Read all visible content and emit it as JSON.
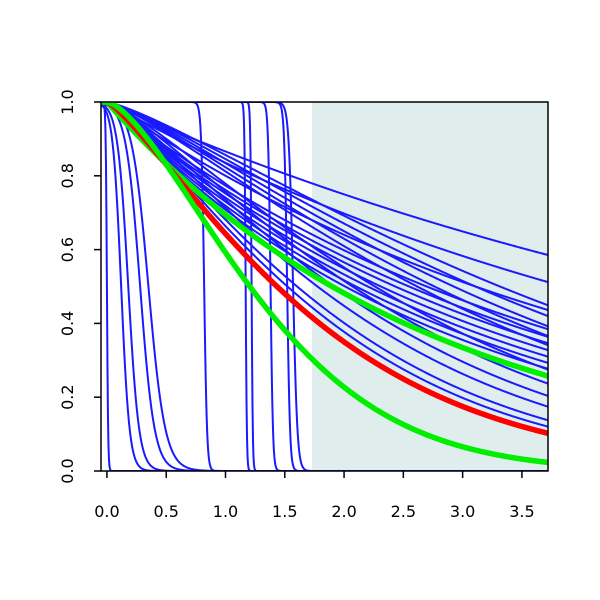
{
  "chart_data": {
    "type": "line",
    "title": "",
    "xlabel": "",
    "ylabel": "",
    "xlim": [
      -0.05,
      3.72
    ],
    "ylim": [
      0,
      1
    ],
    "x_ticks": [
      "0.0",
      "0.5",
      "1.0",
      "1.5",
      "2.0",
      "2.5",
      "3.0",
      "3.5"
    ],
    "y_ticks": [
      "0.0",
      "0.2",
      "0.4",
      "0.6",
      "0.8",
      "1.0"
    ],
    "grid": false,
    "legend": "none",
    "shaded_region": {
      "x_from": 1.73,
      "x_to": 3.72,
      "color": "#e0eded"
    },
    "colors": {
      "blue": "#1a1aff",
      "red": "#ff0000",
      "green": "#00ee00"
    },
    "series": [
      {
        "kind": "sigmoid",
        "center": 0.0,
        "width": 0.005,
        "color": "blue"
      },
      {
        "kind": "sigmoid",
        "center": 0.12,
        "width": 0.035,
        "color": "blue"
      },
      {
        "kind": "sigmoid",
        "center": 0.18,
        "width": 0.045,
        "color": "blue"
      },
      {
        "kind": "sigmoid",
        "center": 0.28,
        "width": 0.06,
        "color": "blue"
      },
      {
        "kind": "sigmoid",
        "center": 0.35,
        "width": 0.07,
        "color": "blue"
      },
      {
        "kind": "sigmoid",
        "center": 0.82,
        "width": 0.012,
        "color": "blue"
      },
      {
        "kind": "sigmoid",
        "center": 1.17,
        "width": 0.005,
        "color": "blue"
      },
      {
        "kind": "sigmoid",
        "center": 1.22,
        "width": 0.005,
        "color": "blue"
      },
      {
        "kind": "sigmoid",
        "center": 1.38,
        "width": 0.01,
        "color": "blue"
      },
      {
        "kind": "sigmoid",
        "center": 1.52,
        "width": 0.012,
        "color": "blue"
      },
      {
        "kind": "sigmoid",
        "center": 1.57,
        "width": 0.018,
        "color": "blue"
      },
      {
        "kind": "power",
        "k": 0.144,
        "p": 1.0,
        "color": "blue"
      },
      {
        "kind": "power",
        "k": 0.18,
        "p": 1.0,
        "color": "blue"
      },
      {
        "kind": "power",
        "k": 0.223,
        "p": 1.0,
        "color": "blue"
      },
      {
        "kind": "power",
        "k": 0.257,
        "p": 1.0,
        "color": "blue"
      },
      {
        "kind": "power",
        "k": 0.272,
        "p": 1.0,
        "color": "blue"
      },
      {
        "kind": "power",
        "k": 0.285,
        "p": 1.0,
        "color": "blue"
      },
      {
        "kind": "power",
        "k": 0.3,
        "p": 1.0,
        "color": "blue"
      },
      {
        "kind": "power",
        "k": 0.315,
        "p": 1.0,
        "color": "blue"
      },
      {
        "kind": "power",
        "k": 0.33,
        "p": 1.0,
        "color": "blue"
      },
      {
        "kind": "power",
        "k": 0.345,
        "p": 1.0,
        "color": "blue"
      },
      {
        "kind": "power",
        "k": 0.225,
        "p": 1.25,
        "color": "blue"
      },
      {
        "kind": "power",
        "k": 0.24,
        "p": 1.25,
        "color": "blue"
      },
      {
        "kind": "power",
        "k": 0.255,
        "p": 1.25,
        "color": "blue"
      },
      {
        "kind": "power",
        "k": 0.27,
        "p": 1.25,
        "color": "blue"
      },
      {
        "kind": "power",
        "k": 0.285,
        "p": 1.25,
        "color": "blue"
      },
      {
        "kind": "power",
        "k": 0.33,
        "p": 1.25,
        "color": "blue"
      },
      {
        "kind": "power",
        "k": 0.36,
        "p": 1.25,
        "color": "blue"
      },
      {
        "kind": "power",
        "k": 0.39,
        "p": 1.25,
        "color": "blue"
      },
      {
        "kind": "power",
        "k": 0.42,
        "p": 1.25,
        "color": "blue"
      },
      {
        "kind": "power",
        "k": 0.465,
        "p": 1.25,
        "color": "blue"
      },
      {
        "kind": "power",
        "k": 0.49,
        "p": 1.25,
        "color": "blue"
      },
      {
        "kind": "power",
        "k": 0.365,
        "p": 1.0,
        "color": "green",
        "thick": true
      },
      {
        "kind": "power",
        "k": 0.52,
        "p": 1.25,
        "color": "red",
        "thick": true
      },
      {
        "kind": "power",
        "k": 0.65,
        "p": 1.5,
        "color": "green",
        "thick": true
      }
    ]
  }
}
